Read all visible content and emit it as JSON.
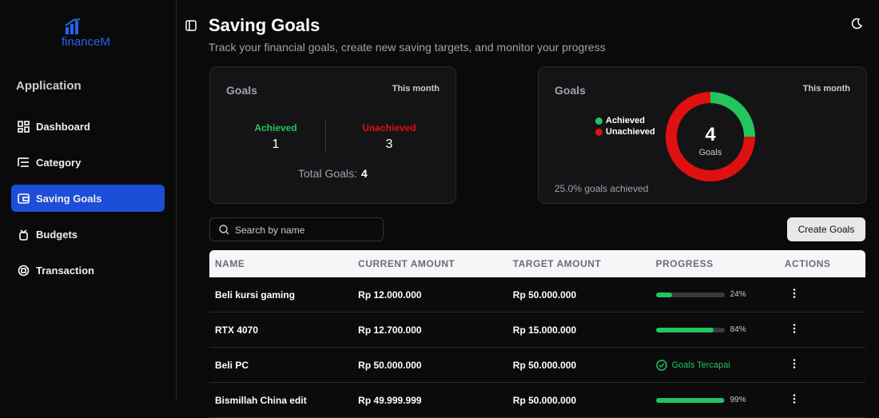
{
  "sidebar": {
    "logo": "financeM",
    "section": "Application",
    "nav": [
      "Dashboard",
      "Category",
      "Saving Goals",
      "Budgets",
      "Transaction"
    ],
    "active": 2
  },
  "header": {
    "title": "Saving Goals",
    "subtitle": "Track your financial goals, create new saving targets, and monitor your progress"
  },
  "summary": {
    "title": "Goals",
    "period": "This month",
    "achieved_label": "Achieved",
    "achieved": 1,
    "unachieved_label": "Unachieved",
    "unachieved": 3,
    "total_label": "Total Goals:",
    "total": 4
  },
  "donut": {
    "title": "Goals",
    "period": "This month",
    "legend": [
      {
        "name": "Achieved",
        "color": "#22c55e"
      },
      {
        "name": "Unachieved",
        "color": "#e01010"
      }
    ],
    "center_value": 4,
    "center_label": "Goals",
    "footer": "25.0% goals achieved"
  },
  "search": {
    "placeholder": "Search by name"
  },
  "create_button": "Create Goals",
  "table": {
    "columns": [
      "NAME",
      "CURRENT AMOUNT",
      "TARGET AMOUNT",
      "PROGRESS",
      "ACTIONS"
    ],
    "rows": [
      {
        "name": "Beli kursi gaming",
        "current": "Rp 12.000.000",
        "target": "Rp 50.000.000",
        "progress": 24,
        "progress_label": "24%"
      },
      {
        "name": "RTX 4070",
        "current": "Rp 12.700.000",
        "target": "Rp 15.000.000",
        "progress": 84,
        "progress_label": "84%"
      },
      {
        "name": "Beli PC",
        "current": "Rp 50.000.000",
        "target": "Rp 50.000.000",
        "status": "Goals Tercapai"
      },
      {
        "name": "Bismillah China edit",
        "current": "Rp 49.999.999",
        "target": "Rp 50.000.000",
        "progress": 99,
        "progress_label": "99%"
      }
    ]
  }
}
